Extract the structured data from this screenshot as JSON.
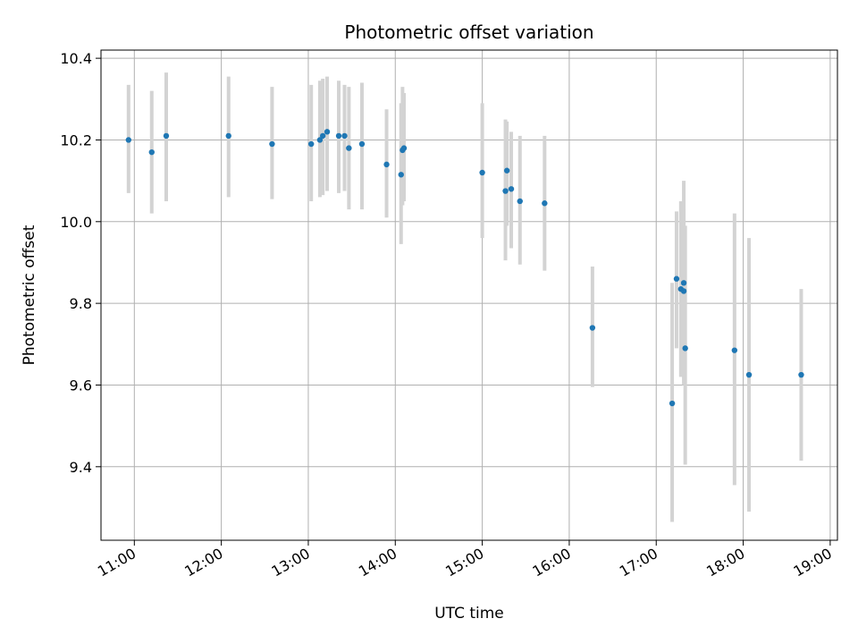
{
  "chart_data": {
    "type": "scatter",
    "title": "Photometric offset variation",
    "xlabel": "UTC time",
    "ylabel": "Photometric offset",
    "x_unit": "hours (UTC)",
    "xlim": [
      "10:37",
      "19:05"
    ],
    "ylim": [
      9.22,
      10.42
    ],
    "x_ticks": [
      "11:00",
      "12:00",
      "13:00",
      "14:00",
      "15:00",
      "16:00",
      "17:00",
      "18:00",
      "19:00"
    ],
    "y_ticks": [
      "9.4",
      "9.6",
      "9.8",
      "10.0",
      "10.2",
      "10.4"
    ],
    "grid": true,
    "marker_color": "#1f77b4",
    "errorbar_color": "#d3d3d3",
    "points": [
      {
        "x": "10:56",
        "y": 10.2,
        "lo": 10.07,
        "hi": 10.335
      },
      {
        "x": "11:12",
        "y": 10.17,
        "lo": 10.02,
        "hi": 10.32
      },
      {
        "x": "11:22",
        "y": 10.21,
        "lo": 10.05,
        "hi": 10.365
      },
      {
        "x": "12:05",
        "y": 10.21,
        "lo": 10.06,
        "hi": 10.355
      },
      {
        "x": "12:35",
        "y": 10.19,
        "lo": 10.055,
        "hi": 10.33
      },
      {
        "x": "13:02",
        "y": 10.19,
        "lo": 10.05,
        "hi": 10.335
      },
      {
        "x": "13:08",
        "y": 10.2,
        "lo": 10.06,
        "hi": 10.345
      },
      {
        "x": "13:10",
        "y": 10.21,
        "lo": 10.065,
        "hi": 10.35
      },
      {
        "x": "13:13",
        "y": 10.22,
        "lo": 10.075,
        "hi": 10.355
      },
      {
        "x": "13:21",
        "y": 10.21,
        "lo": 10.07,
        "hi": 10.345
      },
      {
        "x": "13:25",
        "y": 10.21,
        "lo": 10.075,
        "hi": 10.335
      },
      {
        "x": "13:28",
        "y": 10.18,
        "lo": 10.03,
        "hi": 10.33
      },
      {
        "x": "13:37",
        "y": 10.19,
        "lo": 10.03,
        "hi": 10.34
      },
      {
        "x": "13:54",
        "y": 10.14,
        "lo": 10.01,
        "hi": 10.275
      },
      {
        "x": "14:04",
        "y": 10.115,
        "lo": 9.945,
        "hi": 10.29
      },
      {
        "x": "14:05",
        "y": 10.175,
        "lo": 10.04,
        "hi": 10.33
      },
      {
        "x": "14:06",
        "y": 10.18,
        "lo": 10.05,
        "hi": 10.315
      },
      {
        "x": "15:00",
        "y": 10.12,
        "lo": 9.96,
        "hi": 10.29
      },
      {
        "x": "15:16",
        "y": 10.075,
        "lo": 9.905,
        "hi": 10.25
      },
      {
        "x": "15:17",
        "y": 10.125,
        "lo": 9.99,
        "hi": 10.245
      },
      {
        "x": "15:20",
        "y": 10.08,
        "lo": 9.935,
        "hi": 10.22
      },
      {
        "x": "15:26",
        "y": 10.05,
        "lo": 9.895,
        "hi": 10.21
      },
      {
        "x": "15:43",
        "y": 10.045,
        "lo": 9.88,
        "hi": 10.21
      },
      {
        "x": "16:16",
        "y": 9.74,
        "lo": 9.595,
        "hi": 9.89
      },
      {
        "x": "17:11",
        "y": 9.555,
        "lo": 9.265,
        "hi": 9.85
      },
      {
        "x": "17:14",
        "y": 9.86,
        "lo": 9.69,
        "hi": 10.025
      },
      {
        "x": "17:17",
        "y": 9.835,
        "lo": 9.62,
        "hi": 10.05
      },
      {
        "x": "17:19",
        "y": 9.85,
        "lo": 9.66,
        "hi": 10.1
      },
      {
        "x": "17:19",
        "y": 9.83,
        "lo": 9.6,
        "hi": 10.03
      },
      {
        "x": "17:20",
        "y": 9.69,
        "lo": 9.405,
        "hi": 9.99
      },
      {
        "x": "17:54",
        "y": 9.685,
        "lo": 9.355,
        "hi": 10.02
      },
      {
        "x": "18:04",
        "y": 9.625,
        "lo": 9.29,
        "hi": 9.96
      },
      {
        "x": "18:40",
        "y": 9.625,
        "lo": 9.415,
        "hi": 9.835
      }
    ]
  }
}
